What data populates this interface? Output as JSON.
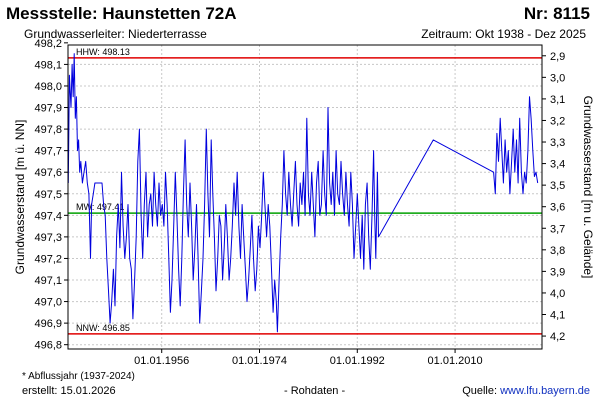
{
  "header": {
    "title": "Messstelle: Haunstetten 72A",
    "number": "Nr: 8115",
    "aquifer": "Grundwasserleiter:   Niederterrasse",
    "period": "Zeitraum: Okt 1938 - Dez 2025"
  },
  "footer": {
    "footnote": "* Abflussjahr (1937-2024)",
    "created": "erstellt:  15.01.2026",
    "rawdata": "- Rohdaten -",
    "source_prefix": "Quelle: ",
    "source_link": "www.lfu.bayern.de"
  },
  "chart_data": {
    "type": "line",
    "ylabel": "Grundwasserstand [m ü. NN]",
    "y2label": "Grundwasserstand [m u. Gelände]",
    "ylim": [
      496.78,
      498.19
    ],
    "y2lim": [
      2.85,
      4.26
    ],
    "yticks": [
      "496,8",
      "496,9",
      "497,0",
      "497,1",
      "497,2",
      "497,3",
      "497,4",
      "497,5",
      "497,6",
      "497,7",
      "497,8",
      "497,9",
      "498,0",
      "498,1",
      "498,2"
    ],
    "y2ticks": [
      "2,9",
      "3,0",
      "3,1",
      "3,2",
      "3,3",
      "3,4",
      "3,5",
      "3,6",
      "3,7",
      "3,8",
      "3,9",
      "4,0",
      "4,1",
      "4,2"
    ],
    "xlim": [
      1938.75,
      2026.0
    ],
    "xticks": [
      {
        "x": 1956.0,
        "label": "01.01.1956"
      },
      {
        "x": 1974.0,
        "label": "01.01.1974"
      },
      {
        "x": 1992.0,
        "label": "01.01.1992"
      },
      {
        "x": 2010.0,
        "label": "01.01.2010"
      }
    ],
    "grid": true,
    "reference_lines": [
      {
        "name": "HHW",
        "label": "HHW: 498.13",
        "value": 498.13,
        "color": "#e00000"
      },
      {
        "name": "MW",
        "label": "MW: 497.41",
        "value": 497.41,
        "color": "#00a000"
      },
      {
        "name": "NNW",
        "label": "NNW: 496.85",
        "value": 496.85,
        "color": "#e00000"
      }
    ],
    "series": [
      {
        "color": "#0000dd",
        "points": [
          [
            1938.8,
            497.55
          ],
          [
            1939.0,
            498.05
          ],
          [
            1939.3,
            497.9
          ],
          [
            1939.5,
            498.1
          ],
          [
            1939.7,
            497.95
          ],
          [
            1939.9,
            498.15
          ],
          [
            1940.1,
            497.85
          ],
          [
            1940.3,
            497.95
          ],
          [
            1940.5,
            497.7
          ],
          [
            1940.7,
            497.75
          ],
          [
            1940.9,
            497.6
          ],
          [
            1941.1,
            497.65
          ],
          [
            1941.4,
            497.55
          ],
          [
            1941.7,
            497.6
          ],
          [
            1942.0,
            497.65
          ],
          [
            1942.3,
            497.55
          ],
          [
            1942.6,
            497.5
          ],
          [
            1942.9,
            497.2
          ],
          [
            1943.1,
            497.45
          ],
          [
            1943.4,
            497.5
          ],
          [
            1943.7,
            497.55
          ],
          [
            1944.0,
            497.55
          ],
          [
            1944.3,
            497.55
          ],
          [
            1944.6,
            497.55
          ],
          [
            1945.0,
            497.55
          ],
          [
            1945.3,
            497.45
          ],
          [
            1945.6,
            497.4
          ],
          [
            1945.9,
            497.2
          ],
          [
            1946.2,
            497.05
          ],
          [
            1946.5,
            496.9
          ],
          [
            1946.8,
            497.0
          ],
          [
            1947.1,
            497.15
          ],
          [
            1947.4,
            496.98
          ],
          [
            1947.7,
            497.3
          ],
          [
            1948.0,
            497.45
          ],
          [
            1948.3,
            497.25
          ],
          [
            1948.6,
            497.6
          ],
          [
            1948.9,
            497.35
          ],
          [
            1949.2,
            497.2
          ],
          [
            1949.5,
            497.3
          ],
          [
            1949.8,
            497.45
          ],
          [
            1950.1,
            497.2
          ],
          [
            1950.4,
            497.15
          ],
          [
            1950.7,
            496.92
          ],
          [
            1951.0,
            497.1
          ],
          [
            1951.3,
            497.3
          ],
          [
            1951.6,
            497.65
          ],
          [
            1951.9,
            497.8
          ],
          [
            1952.2,
            497.4
          ],
          [
            1952.5,
            497.2
          ],
          [
            1952.8,
            497.45
          ],
          [
            1953.1,
            497.6
          ],
          [
            1953.4,
            497.3
          ],
          [
            1953.7,
            497.45
          ],
          [
            1954.0,
            497.5
          ],
          [
            1954.3,
            497.35
          ],
          [
            1954.6,
            497.6
          ],
          [
            1954.9,
            497.45
          ],
          [
            1955.2,
            497.35
          ],
          [
            1955.5,
            497.55
          ],
          [
            1955.8,
            497.4
          ],
          [
            1956.1,
            497.45
          ],
          [
            1956.4,
            497.35
          ],
          [
            1956.7,
            497.6
          ],
          [
            1957.0,
            497.45
          ],
          [
            1957.3,
            497.2
          ],
          [
            1957.6,
            496.95
          ],
          [
            1957.9,
            497.1
          ],
          [
            1958.2,
            497.35
          ],
          [
            1958.5,
            497.6
          ],
          [
            1958.8,
            497.4
          ],
          [
            1959.1,
            497.15
          ],
          [
            1959.4,
            496.98
          ],
          [
            1959.7,
            497.2
          ],
          [
            1960.0,
            497.5
          ],
          [
            1960.3,
            497.75
          ],
          [
            1960.6,
            497.45
          ],
          [
            1960.9,
            497.3
          ],
          [
            1961.2,
            497.55
          ],
          [
            1961.5,
            497.35
          ],
          [
            1961.8,
            497.1
          ],
          [
            1962.1,
            497.25
          ],
          [
            1962.4,
            497.45
          ],
          [
            1962.7,
            497.2
          ],
          [
            1963.0,
            496.9
          ],
          [
            1963.3,
            497.05
          ],
          [
            1963.6,
            497.2
          ],
          [
            1963.9,
            497.45
          ],
          [
            1964.2,
            497.8
          ],
          [
            1964.5,
            497.5
          ],
          [
            1964.8,
            497.3
          ],
          [
            1965.1,
            497.75
          ],
          [
            1965.4,
            497.5
          ],
          [
            1965.7,
            497.3
          ],
          [
            1966.0,
            497.05
          ],
          [
            1966.3,
            497.2
          ],
          [
            1966.6,
            497.4
          ],
          [
            1966.9,
            497.35
          ],
          [
            1967.2,
            497.1
          ],
          [
            1967.5,
            497.25
          ],
          [
            1967.8,
            497.45
          ],
          [
            1968.1,
            497.3
          ],
          [
            1968.4,
            497.1
          ],
          [
            1968.7,
            497.2
          ],
          [
            1969.0,
            497.35
          ],
          [
            1969.3,
            497.55
          ],
          [
            1969.6,
            497.4
          ],
          [
            1969.9,
            497.6
          ],
          [
            1970.2,
            497.35
          ],
          [
            1970.5,
            497.2
          ],
          [
            1970.8,
            497.45
          ],
          [
            1971.1,
            497.3
          ],
          [
            1971.4,
            497.15
          ],
          [
            1971.7,
            497.0
          ],
          [
            1972.0,
            497.1
          ],
          [
            1972.3,
            497.25
          ],
          [
            1972.6,
            497.4
          ],
          [
            1972.9,
            497.2
          ],
          [
            1973.2,
            497.05
          ],
          [
            1973.5,
            497.15
          ],
          [
            1973.8,
            497.35
          ],
          [
            1974.1,
            497.25
          ],
          [
            1974.4,
            497.4
          ],
          [
            1974.7,
            497.6
          ],
          [
            1975.0,
            497.45
          ],
          [
            1975.3,
            497.3
          ],
          [
            1975.6,
            497.45
          ],
          [
            1975.9,
            497.35
          ],
          [
            1976.2,
            497.15
          ],
          [
            1976.5,
            496.95
          ],
          [
            1976.8,
            497.1
          ],
          [
            1977.1,
            497.0
          ],
          [
            1977.3,
            496.86
          ],
          [
            1977.6,
            497.1
          ],
          [
            1977.9,
            497.3
          ],
          [
            1978.2,
            497.45
          ],
          [
            1978.5,
            497.7
          ],
          [
            1978.8,
            497.5
          ],
          [
            1979.1,
            497.4
          ],
          [
            1979.4,
            497.6
          ],
          [
            1979.7,
            497.45
          ],
          [
            1980.0,
            497.35
          ],
          [
            1980.3,
            497.5
          ],
          [
            1980.6,
            497.65
          ],
          [
            1980.9,
            497.45
          ],
          [
            1981.2,
            497.35
          ],
          [
            1981.5,
            497.55
          ],
          [
            1981.8,
            497.45
          ],
          [
            1982.1,
            497.6
          ],
          [
            1982.4,
            497.4
          ],
          [
            1982.7,
            497.85
          ],
          [
            1983.0,
            497.5
          ],
          [
            1983.3,
            497.4
          ],
          [
            1983.6,
            497.6
          ],
          [
            1983.9,
            497.45
          ],
          [
            1984.2,
            497.3
          ],
          [
            1984.5,
            497.55
          ],
          [
            1984.8,
            497.65
          ],
          [
            1985.1,
            497.4
          ],
          [
            1985.4,
            497.45
          ],
          [
            1985.7,
            497.7
          ],
          [
            1986.0,
            497.5
          ],
          [
            1986.3,
            497.4
          ],
          [
            1986.6,
            497.9
          ],
          [
            1986.9,
            497.55
          ],
          [
            1987.2,
            497.45
          ],
          [
            1987.5,
            497.6
          ],
          [
            1987.8,
            497.4
          ],
          [
            1988.1,
            497.7
          ],
          [
            1988.4,
            497.5
          ],
          [
            1988.7,
            497.45
          ],
          [
            1989.0,
            497.65
          ],
          [
            1989.3,
            497.5
          ],
          [
            1989.6,
            497.4
          ],
          [
            1989.9,
            497.6
          ],
          [
            1990.2,
            497.45
          ],
          [
            1990.5,
            497.35
          ],
          [
            1990.8,
            497.6
          ],
          [
            1991.1,
            497.45
          ],
          [
            1991.4,
            497.2
          ],
          [
            1991.7,
            497.35
          ],
          [
            1992.0,
            497.5
          ],
          [
            1992.3,
            497.35
          ],
          [
            1992.6,
            497.2
          ],
          [
            1992.9,
            497.4
          ],
          [
            1993.2,
            497.15
          ],
          [
            1993.5,
            497.45
          ],
          [
            1993.8,
            497.55
          ],
          [
            1994.1,
            497.3
          ],
          [
            1994.4,
            497.15
          ],
          [
            1994.7,
            497.4
          ],
          [
            1995.0,
            497.7
          ],
          [
            1995.2,
            497.4
          ],
          [
            1995.4,
            497.2
          ],
          [
            1995.7,
            497.6
          ],
          [
            1995.9,
            497.3
          ],
          [
            2006.0,
            497.75
          ],
          [
            2017.1,
            497.6
          ],
          [
            2017.4,
            497.5
          ],
          [
            2017.7,
            497.78
          ],
          [
            2018.0,
            497.65
          ],
          [
            2018.3,
            497.85
          ],
          [
            2018.6,
            497.7
          ],
          [
            2018.9,
            497.55
          ],
          [
            2019.2,
            497.75
          ],
          [
            2019.5,
            497.6
          ],
          [
            2019.8,
            497.7
          ],
          [
            2020.1,
            497.5
          ],
          [
            2020.4,
            497.65
          ],
          [
            2020.7,
            497.8
          ],
          [
            2021.0,
            497.6
          ],
          [
            2021.3,
            497.75
          ],
          [
            2021.6,
            497.55
          ],
          [
            2021.9,
            497.85
          ],
          [
            2022.2,
            497.6
          ],
          [
            2022.5,
            497.5
          ],
          [
            2022.8,
            497.6
          ],
          [
            2023.1,
            497.55
          ],
          [
            2023.4,
            497.7
          ],
          [
            2023.7,
            497.95
          ],
          [
            2024.0,
            497.85
          ],
          [
            2024.3,
            497.7
          ],
          [
            2024.6,
            497.58
          ],
          [
            2024.9,
            497.6
          ],
          [
            2025.2,
            497.55
          ]
        ]
      }
    ]
  }
}
